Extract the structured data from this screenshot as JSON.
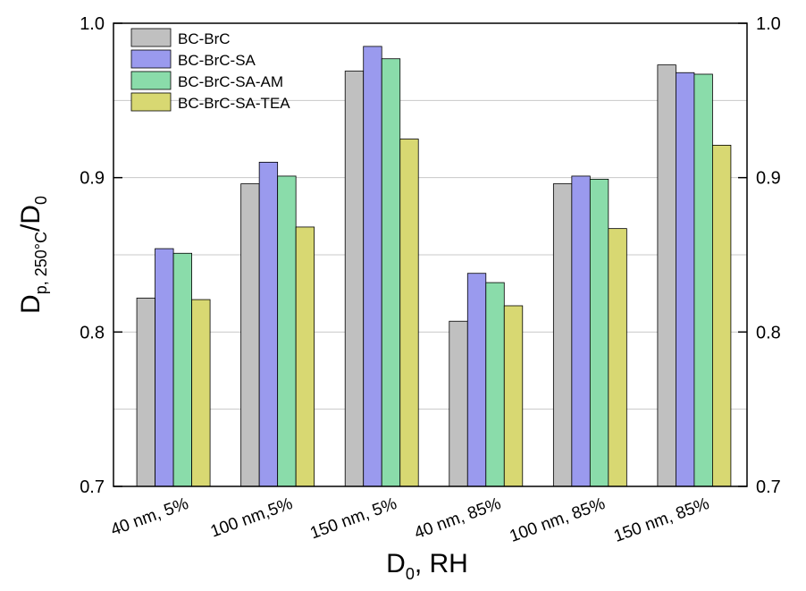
{
  "chart_data": {
    "type": "bar",
    "ylabel": {
      "main": "D",
      "sub": "p, 250°C",
      "mid": "/D",
      "sub2": "0"
    },
    "xlabel": {
      "main": "D",
      "sub": "0",
      "rest": ", RH"
    },
    "categories": [
      "40 nm, 5%",
      "100 nm,5%",
      "150 nm, 5%",
      "40 nm, 85%",
      "100 nm, 85%",
      "150 nm, 85%"
    ],
    "series": [
      {
        "name": "BC-BrC",
        "color": "#c0c0c0",
        "values": [
          0.822,
          0.896,
          0.969,
          0.807,
          0.896,
          0.973
        ]
      },
      {
        "name": "BC-BrC-SA",
        "color": "#9a9aee",
        "values": [
          0.854,
          0.91,
          0.985,
          0.838,
          0.901,
          0.968
        ]
      },
      {
        "name": "BC-BrC-SA-AM",
        "color": "#8adcaa",
        "values": [
          0.851,
          0.901,
          0.977,
          0.832,
          0.899,
          0.967
        ]
      },
      {
        "name": "BC-BrC-SA-TEA",
        "color": "#d8d872",
        "values": [
          0.821,
          0.868,
          0.925,
          0.817,
          0.867,
          0.921
        ]
      }
    ],
    "ylim": [
      0.7,
      1.0
    ],
    "yticks": [
      0.7,
      0.8,
      0.9,
      {
        "value": 1,
        "label": "1.0"
      }
    ],
    "y2lim": [
      0.7,
      1.0
    ],
    "y2ticks": [
      0.7,
      0.8,
      0.9,
      {
        "value": 1,
        "label": "1.0"
      }
    ],
    "minor_grid": [
      0.75,
      0.85,
      0.95
    ],
    "grid": true,
    "legend": "upper-left"
  }
}
